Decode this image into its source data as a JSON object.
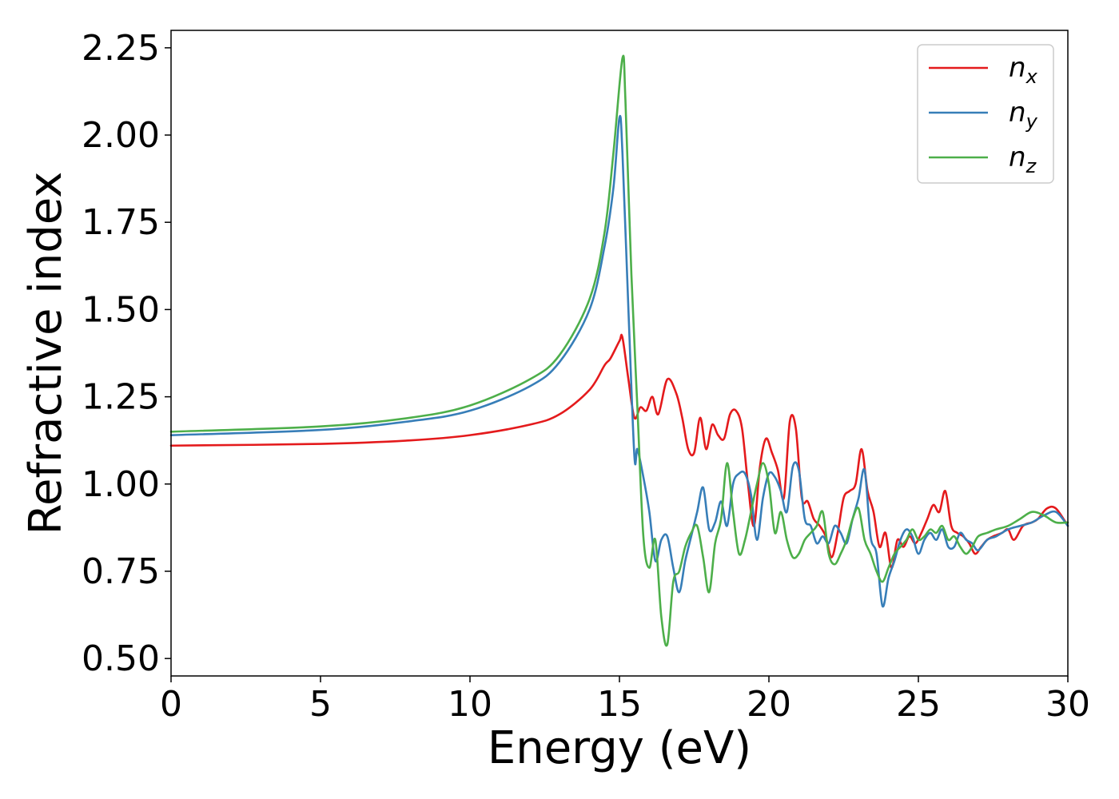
{
  "chart_data": {
    "type": "line",
    "title": "",
    "xlabel": "Energy (eV)",
    "ylabel": "Refractive index",
    "xlim": [
      0,
      30
    ],
    "ylim": [
      0.45,
      2.3
    ],
    "xticks": [
      0,
      5,
      10,
      15,
      20,
      25,
      30
    ],
    "xtick_labels": [
      "0",
      "5",
      "10",
      "15",
      "20",
      "25",
      "30"
    ],
    "yticks": [
      0.5,
      0.75,
      1.0,
      1.25,
      1.5,
      1.75,
      2.0,
      2.25
    ],
    "ytick_labels": [
      "0.50",
      "0.75",
      "1.00",
      "1.25",
      "1.50",
      "1.75",
      "2.00",
      "2.25"
    ],
    "grid": false,
    "legend_position": "top-right",
    "series": [
      {
        "name_base": "n",
        "name_sub": "x",
        "color": "#e41a1c",
        "x": [
          0,
          5,
          8,
          10,
          12,
          13,
          14,
          14.5,
          14.7,
          15,
          15.1,
          15.3,
          15.5,
          15.7,
          15.9,
          16.1,
          16.3,
          16.6,
          16.9,
          17.1,
          17.3,
          17.5,
          17.7,
          17.9,
          18.1,
          18.3,
          18.5,
          18.7,
          18.9,
          19.1,
          19.3,
          19.5,
          19.7,
          19.9,
          20.1,
          20.3,
          20.5,
          20.7,
          20.9,
          21.1,
          21.3,
          21.5,
          21.7,
          21.9,
          22.1,
          22.3,
          22.5,
          22.7,
          22.9,
          23.1,
          23.3,
          23.5,
          23.7,
          23.9,
          24.1,
          24.3,
          24.5,
          24.7,
          24.9,
          25.1,
          25.3,
          25.5,
          25.7,
          25.9,
          26.1,
          26.3,
          26.5,
          26.7,
          26.9,
          27.1,
          27.3,
          27.5,
          27.8,
          28.0,
          28.2,
          28.5,
          28.8,
          29.0,
          29.3,
          29.6,
          30
        ],
        "y": [
          1.11,
          1.115,
          1.125,
          1.14,
          1.17,
          1.2,
          1.27,
          1.34,
          1.36,
          1.41,
          1.42,
          1.3,
          1.19,
          1.22,
          1.21,
          1.25,
          1.2,
          1.3,
          1.26,
          1.19,
          1.1,
          1.09,
          1.19,
          1.1,
          1.17,
          1.14,
          1.13,
          1.2,
          1.21,
          1.16,
          1.0,
          0.88,
          1.05,
          1.13,
          1.09,
          1.04,
          0.96,
          1.18,
          1.16,
          0.96,
          0.95,
          0.9,
          0.88,
          0.85,
          0.79,
          0.86,
          0.96,
          0.98,
          1.0,
          1.1,
          0.98,
          0.92,
          0.82,
          0.86,
          0.76,
          0.84,
          0.82,
          0.85,
          0.83,
          0.86,
          0.9,
          0.94,
          0.92,
          0.98,
          0.88,
          0.86,
          0.85,
          0.83,
          0.8,
          0.82,
          0.84,
          0.85,
          0.86,
          0.87,
          0.84,
          0.88,
          0.89,
          0.9,
          0.93,
          0.93,
          0.88
        ]
      },
      {
        "name_base": "n",
        "name_sub": "y",
        "color": "#377eb8",
        "x": [
          0,
          5,
          8,
          10,
          12,
          13,
          14,
          14.5,
          14.8,
          15.0,
          15.1,
          15.3,
          15.5,
          15.6,
          15.8,
          16.0,
          16.2,
          16.4,
          16.6,
          16.8,
          17.0,
          17.2,
          17.4,
          17.6,
          17.8,
          18.0,
          18.2,
          18.4,
          18.6,
          18.8,
          19.0,
          19.2,
          19.4,
          19.6,
          19.8,
          20.0,
          20.2,
          20.4,
          20.6,
          20.8,
          21.0,
          21.2,
          21.4,
          21.6,
          21.8,
          22.0,
          22.2,
          22.4,
          22.6,
          22.8,
          23.0,
          23.2,
          23.4,
          23.6,
          23.8,
          24.0,
          24.2,
          24.4,
          24.6,
          24.8,
          25.0,
          25.2,
          25.4,
          25.6,
          25.8,
          26.0,
          26.2,
          26.4,
          26.6,
          26.8,
          27.0,
          27.3,
          27.6,
          28.0,
          28.4,
          28.8,
          29.2,
          29.6,
          30
        ],
        "y": [
          1.14,
          1.155,
          1.18,
          1.21,
          1.28,
          1.35,
          1.5,
          1.68,
          1.85,
          2.05,
          1.95,
          1.5,
          1.08,
          1.1,
          1.02,
          0.92,
          0.78,
          0.84,
          0.85,
          0.76,
          0.69,
          0.78,
          0.85,
          0.92,
          0.99,
          0.87,
          0.89,
          0.95,
          0.88,
          1.0,
          1.03,
          1.03,
          0.97,
          0.84,
          0.96,
          1.03,
          1.02,
          0.98,
          0.92,
          1.05,
          1.04,
          0.9,
          0.88,
          0.83,
          0.85,
          0.83,
          0.88,
          0.86,
          0.83,
          0.9,
          0.96,
          1.04,
          0.85,
          0.8,
          0.65,
          0.73,
          0.78,
          0.84,
          0.87,
          0.85,
          0.8,
          0.84,
          0.86,
          0.84,
          0.87,
          0.82,
          0.82,
          0.86,
          0.84,
          0.83,
          0.81,
          0.84,
          0.85,
          0.87,
          0.88,
          0.89,
          0.91,
          0.92,
          0.88
        ]
      },
      {
        "name_base": "n",
        "name_sub": "z",
        "color": "#4daf4a",
        "x": [
          0,
          5,
          8,
          10,
          12,
          13,
          14,
          14.5,
          14.8,
          15.1,
          15.2,
          15.4,
          15.6,
          15.8,
          16.0,
          16.2,
          16.4,
          16.6,
          16.8,
          17.0,
          17.2,
          17.4,
          17.6,
          17.8,
          18.0,
          18.2,
          18.4,
          18.6,
          18.8,
          19.0,
          19.2,
          19.4,
          19.6,
          19.8,
          20.0,
          20.2,
          20.4,
          20.6,
          20.8,
          21.0,
          21.2,
          21.4,
          21.6,
          21.8,
          22.0,
          22.2,
          22.4,
          22.6,
          22.8,
          23.0,
          23.2,
          23.4,
          23.6,
          23.8,
          24.0,
          24.2,
          24.4,
          24.6,
          24.8,
          25.0,
          25.2,
          25.4,
          25.6,
          25.8,
          26.0,
          26.2,
          26.4,
          26.6,
          26.8,
          27.0,
          27.3,
          27.6,
          28.0,
          28.4,
          28.8,
          29.2,
          29.6,
          30
        ],
        "y": [
          1.15,
          1.165,
          1.19,
          1.225,
          1.3,
          1.37,
          1.53,
          1.72,
          1.95,
          2.22,
          2.1,
          1.6,
          1.22,
          0.85,
          0.76,
          0.84,
          0.62,
          0.54,
          0.72,
          0.75,
          0.82,
          0.86,
          0.88,
          0.79,
          0.69,
          0.83,
          0.9,
          1.06,
          0.92,
          0.8,
          0.84,
          0.92,
          1.0,
          1.06,
          1.0,
          0.86,
          0.92,
          0.84,
          0.79,
          0.8,
          0.84,
          0.86,
          0.88,
          0.92,
          0.8,
          0.77,
          0.8,
          0.84,
          0.9,
          0.93,
          0.84,
          0.8,
          0.75,
          0.72,
          0.76,
          0.8,
          0.82,
          0.84,
          0.87,
          0.84,
          0.85,
          0.87,
          0.86,
          0.88,
          0.84,
          0.85,
          0.82,
          0.8,
          0.82,
          0.85,
          0.86,
          0.87,
          0.88,
          0.9,
          0.92,
          0.91,
          0.89,
          0.89
        ]
      }
    ]
  }
}
